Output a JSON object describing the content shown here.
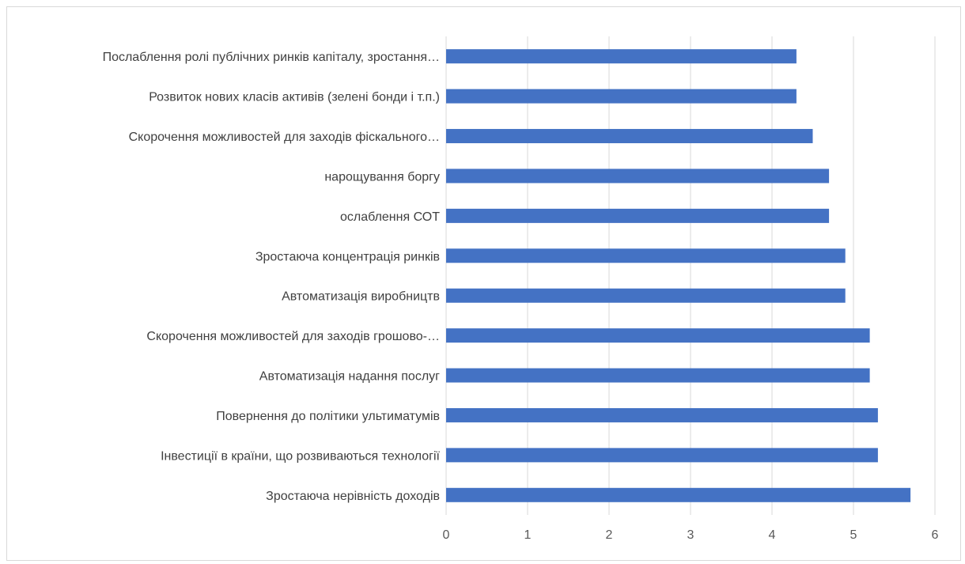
{
  "chart_data": {
    "type": "bar",
    "orientation": "horizontal",
    "categories": [
      "Послаблення ролі публічних ринків капіталу, зростання…",
      "Розвиток нових класів активів (зелені бонди і т.п.)",
      "Скорочення можливостей для заходів фіскального…",
      "нарощування боргу",
      "ослаблення СОТ",
      "Зростаюча концентрація ринків",
      "Автоматизація виробництв",
      "Скорочення можливостей для заходів грошово-…",
      "Автоматизація надання послуг",
      "Повернення до політики ультиматумів",
      "Інвестиції в країни, що розвиваються технології",
      "Зростаюча нерівність доходів"
    ],
    "values": [
      4.3,
      4.3,
      4.5,
      4.7,
      4.7,
      4.9,
      4.9,
      5.2,
      5.2,
      5.3,
      5.3,
      5.7
    ],
    "xlim": [
      0,
      6
    ],
    "xticks": [
      "0",
      "1",
      "2",
      "3",
      "4",
      "5",
      "6"
    ],
    "grid": true,
    "bar_color": "#4472c4",
    "grid_color": "#d9d9d9"
  }
}
